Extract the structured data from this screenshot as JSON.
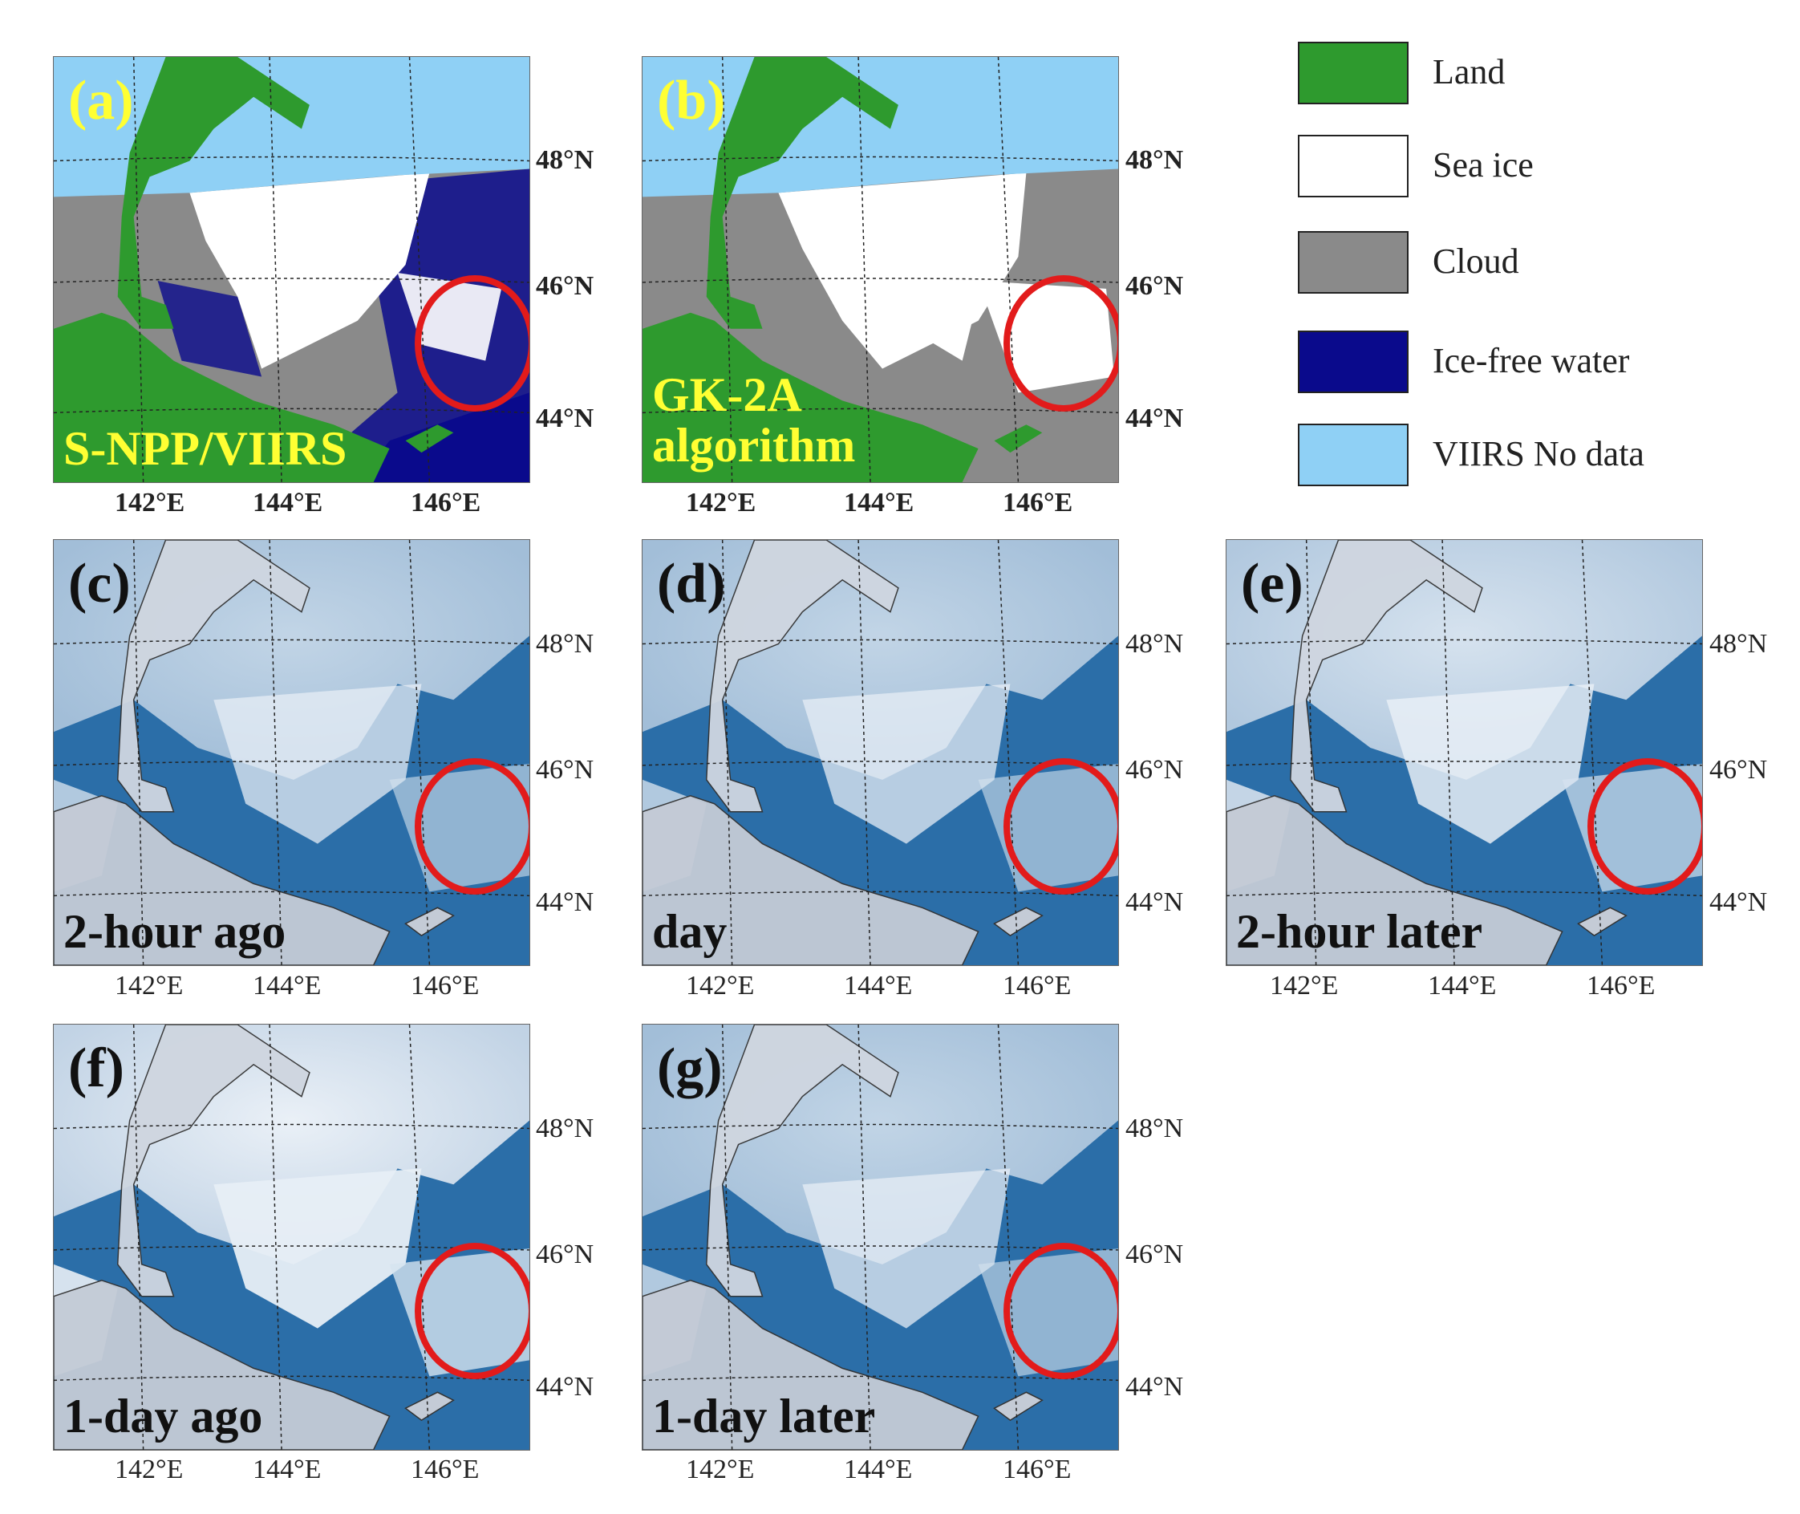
{
  "classification_panels": [
    {
      "id": "a",
      "label": "(a)",
      "caption_lines": [
        "S-NPP/VIIRS"
      ]
    },
    {
      "id": "b",
      "label": "(b)",
      "caption_lines": [
        "GK-2A",
        "algorithm"
      ]
    }
  ],
  "satellite_panels": [
    {
      "id": "c",
      "label": "(c)",
      "caption": "2-hour ago"
    },
    {
      "id": "d",
      "label": "(d)",
      "caption": "day"
    },
    {
      "id": "e",
      "label": "(e)",
      "caption": "2-hour later"
    },
    {
      "id": "f",
      "label": "(f)",
      "caption": "1-day ago"
    },
    {
      "id": "g",
      "label": "(g)",
      "caption": "1-day later"
    }
  ],
  "axes": {
    "lon_ticks": [
      "142°E",
      "144°E",
      "146°E"
    ],
    "lat_ticks": [
      "48°N",
      "46°N",
      "44°N"
    ]
  },
  "legend": {
    "items": [
      {
        "label": "Land",
        "color": "#2e9a2e"
      },
      {
        "label": "Sea ice",
        "color": "#ffffff"
      },
      {
        "label": "Cloud",
        "color": "#8a8a8a"
      },
      {
        "label": "Ice-free water",
        "color": "#0a0a8c"
      },
      {
        "label": "VIIRS No data",
        "color": "#8fd0f5"
      }
    ]
  },
  "colors": {
    "land": "#2e9a2e",
    "sea_ice": "#ffffff",
    "cloud": "#8a8a8a",
    "ice_free_water": "#0a0a8c",
    "no_data": "#8fd0f5",
    "highlight_circle": "#e21b1b",
    "label_yellow": "#ffff33",
    "sea_blue": "#2b6ea8"
  }
}
